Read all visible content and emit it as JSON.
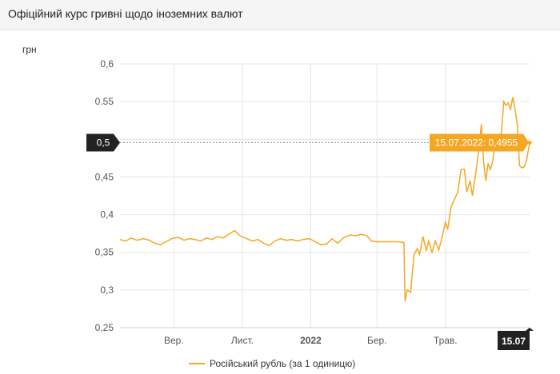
{
  "header": {
    "title": "Офіційний курс гривні щодо іноземних валют"
  },
  "chart_data": {
    "type": "line",
    "title": "",
    "ylabel": "грн",
    "xlabel": "",
    "ylim": [
      0.25,
      0.6
    ],
    "y_ticks": [
      "0,6",
      "0.55",
      "0,5",
      "0,45",
      "0,4",
      "0,35",
      "0,3",
      "0,25"
    ],
    "y_tick_values": [
      0.6,
      0.55,
      0.5,
      0.45,
      0.4,
      0.35,
      0.3,
      0.25
    ],
    "x_range": [
      "2021-07-15",
      "2022-07-15"
    ],
    "x_ticks": [
      {
        "label": "Вер.",
        "date": "2021-09-01",
        "bold": false
      },
      {
        "label": "Лист.",
        "date": "2021-11-01",
        "bold": false
      },
      {
        "label": "2022",
        "date": "2022-01-01",
        "bold": true
      },
      {
        "label": "Бер.",
        "date": "2022-03-01",
        "bold": false
      },
      {
        "label": "Трав.",
        "date": "2022-05-01",
        "bold": false
      }
    ],
    "crosshair": {
      "y_label": "0,5",
      "y_value": 0.4955,
      "x_label": "15.07",
      "x_date": "2022-07-15",
      "tooltip": "15.07.2022: 0,4955"
    },
    "grid": true,
    "legend_position": "bottom",
    "series": [
      {
        "name": "Російський рубль (за 1 одиницю)",
        "color": "#f5a623",
        "points": [
          [
            "2021-07-15",
            0.367
          ],
          [
            "2021-07-20",
            0.365
          ],
          [
            "2021-07-25",
            0.369
          ],
          [
            "2021-07-30",
            0.366
          ],
          [
            "2021-08-05",
            0.368
          ],
          [
            "2021-08-10",
            0.366
          ],
          [
            "2021-08-15",
            0.362
          ],
          [
            "2021-08-20",
            0.36
          ],
          [
            "2021-08-25",
            0.364
          ],
          [
            "2021-08-30",
            0.368
          ],
          [
            "2021-09-05",
            0.37
          ],
          [
            "2021-09-10",
            0.366
          ],
          [
            "2021-09-15",
            0.368
          ],
          [
            "2021-09-20",
            0.367
          ],
          [
            "2021-09-25",
            0.365
          ],
          [
            "2021-09-30",
            0.369
          ],
          [
            "2021-10-05",
            0.367
          ],
          [
            "2021-10-10",
            0.371
          ],
          [
            "2021-10-15",
            0.369
          ],
          [
            "2021-10-20",
            0.374
          ],
          [
            "2021-10-25",
            0.379
          ],
          [
            "2021-10-30",
            0.372
          ],
          [
            "2021-11-05",
            0.368
          ],
          [
            "2021-11-10",
            0.365
          ],
          [
            "2021-11-15",
            0.367
          ],
          [
            "2021-11-20",
            0.362
          ],
          [
            "2021-11-25",
            0.359
          ],
          [
            "2021-11-30",
            0.365
          ],
          [
            "2021-12-05",
            0.368
          ],
          [
            "2021-12-10",
            0.366
          ],
          [
            "2021-12-15",
            0.367
          ],
          [
            "2021-12-20",
            0.365
          ],
          [
            "2021-12-25",
            0.367
          ],
          [
            "2021-12-31",
            0.368
          ],
          [
            "2022-01-05",
            0.364
          ],
          [
            "2022-01-10",
            0.36
          ],
          [
            "2022-01-15",
            0.361
          ],
          [
            "2022-01-20",
            0.368
          ],
          [
            "2022-01-25",
            0.362
          ],
          [
            "2022-01-30",
            0.369
          ],
          [
            "2022-02-05",
            0.373
          ],
          [
            "2022-02-10",
            0.372
          ],
          [
            "2022-02-15",
            0.374
          ],
          [
            "2022-02-20",
            0.372
          ],
          [
            "2022-02-24",
            0.365
          ],
          [
            "2022-03-01",
            0.364
          ],
          [
            "2022-03-10",
            0.364
          ],
          [
            "2022-03-20",
            0.364
          ],
          [
            "2022-03-25",
            0.363
          ],
          [
            "2022-03-26",
            0.285
          ],
          [
            "2022-03-28",
            0.3
          ],
          [
            "2022-03-31",
            0.297
          ],
          [
            "2022-04-03",
            0.347
          ],
          [
            "2022-04-06",
            0.355
          ],
          [
            "2022-04-08",
            0.347
          ],
          [
            "2022-04-11",
            0.371
          ],
          [
            "2022-04-14",
            0.352
          ],
          [
            "2022-04-16",
            0.365
          ],
          [
            "2022-04-19",
            0.35
          ],
          [
            "2022-04-22",
            0.365
          ],
          [
            "2022-04-25",
            0.353
          ],
          [
            "2022-04-28",
            0.37
          ],
          [
            "2022-05-01",
            0.39
          ],
          [
            "2022-05-03",
            0.38
          ],
          [
            "2022-05-06",
            0.41
          ],
          [
            "2022-05-09",
            0.42
          ],
          [
            "2022-05-12",
            0.43
          ],
          [
            "2022-05-15",
            0.46
          ],
          [
            "2022-05-18",
            0.46
          ],
          [
            "2022-05-20",
            0.43
          ],
          [
            "2022-05-23",
            0.445
          ],
          [
            "2022-05-25",
            0.425
          ],
          [
            "2022-05-28",
            0.455
          ],
          [
            "2022-05-31",
            0.49
          ],
          [
            "2022-06-02",
            0.52
          ],
          [
            "2022-06-04",
            0.47
          ],
          [
            "2022-06-06",
            0.445
          ],
          [
            "2022-06-08",
            0.468
          ],
          [
            "2022-06-10",
            0.46
          ],
          [
            "2022-06-12",
            0.47
          ],
          [
            "2022-06-14",
            0.49
          ],
          [
            "2022-06-16",
            0.5
          ],
          [
            "2022-06-18",
            0.5
          ],
          [
            "2022-06-20",
            0.51
          ],
          [
            "2022-06-22",
            0.55
          ],
          [
            "2022-06-24",
            0.545
          ],
          [
            "2022-06-26",
            0.548
          ],
          [
            "2022-06-28",
            0.54
          ],
          [
            "2022-06-30",
            0.556
          ],
          [
            "2022-07-02",
            0.54
          ],
          [
            "2022-07-04",
            0.52
          ],
          [
            "2022-07-06",
            0.465
          ],
          [
            "2022-07-08",
            0.462
          ],
          [
            "2022-07-10",
            0.463
          ],
          [
            "2022-07-12",
            0.47
          ],
          [
            "2022-07-15",
            0.4955
          ]
        ]
      }
    ]
  }
}
